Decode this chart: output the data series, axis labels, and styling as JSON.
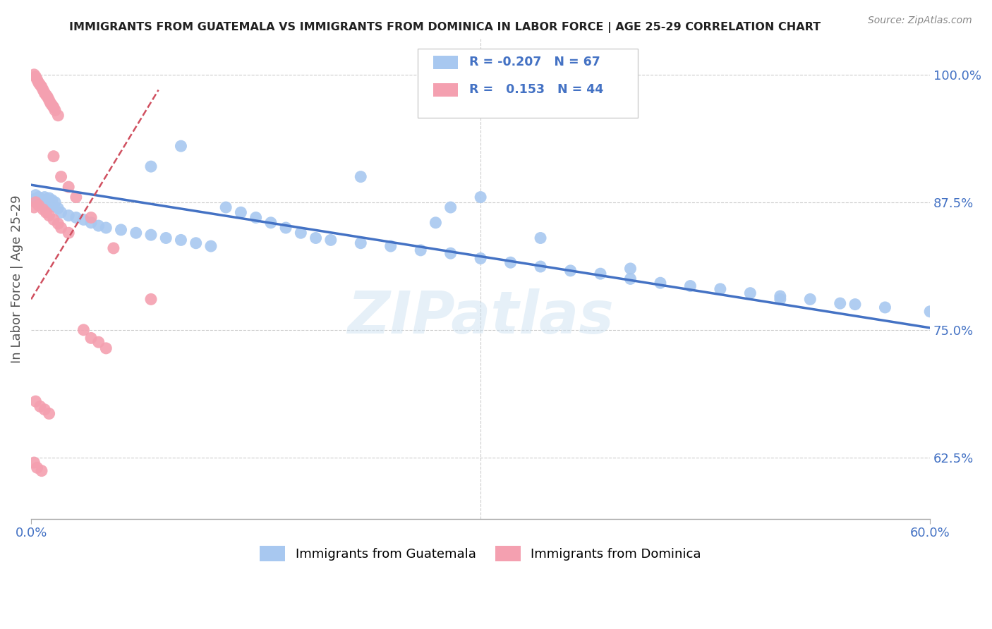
{
  "title": "IMMIGRANTS FROM GUATEMALA VS IMMIGRANTS FROM DOMINICA IN LABOR FORCE | AGE 25-29 CORRELATION CHART",
  "source": "Source: ZipAtlas.com",
  "ylabel": "In Labor Force | Age 25-29",
  "right_yticks": [
    1.0,
    0.875,
    0.75,
    0.625
  ],
  "right_yticklabels": [
    "100.0%",
    "87.5%",
    "75.0%",
    "62.5%"
  ],
  "xmin": 0.0,
  "xmax": 0.6,
  "ymin": 0.565,
  "ymax": 1.035,
  "watermark": "ZIPatlas",
  "legend1_label": "Immigrants from Guatemala",
  "legend2_label": "Immigrants from Dominica",
  "R_guatemala": -0.207,
  "N_guatemala": 67,
  "R_dominica": 0.153,
  "N_dominica": 44,
  "color_guatemala": "#a8c8f0",
  "color_dominica": "#f4a0b0",
  "trendline_guatemala_color": "#4472c4",
  "trendline_dominica_color": "#d05060",
  "background_color": "#ffffff",
  "guatemala_x": [
    0.002,
    0.003,
    0.004,
    0.005,
    0.006,
    0.007,
    0.008,
    0.009,
    0.01,
    0.011,
    0.012,
    0.013,
    0.014,
    0.015,
    0.016,
    0.018,
    0.02,
    0.025,
    0.03,
    0.035,
    0.04,
    0.045,
    0.05,
    0.06,
    0.07,
    0.08,
    0.09,
    0.1,
    0.11,
    0.12,
    0.13,
    0.14,
    0.15,
    0.16,
    0.17,
    0.18,
    0.19,
    0.2,
    0.22,
    0.24,
    0.26,
    0.27,
    0.28,
    0.3,
    0.32,
    0.34,
    0.36,
    0.38,
    0.4,
    0.42,
    0.44,
    0.46,
    0.48,
    0.5,
    0.52,
    0.54,
    0.3,
    0.55,
    0.57,
    0.6,
    0.08,
    0.1,
    0.22,
    0.28,
    0.34,
    0.4,
    0.5
  ],
  "guatemala_y": [
    0.878,
    0.882,
    0.876,
    0.88,
    0.875,
    0.878,
    0.872,
    0.88,
    0.876,
    0.874,
    0.879,
    0.873,
    0.877,
    0.871,
    0.875,
    0.869,
    0.865,
    0.862,
    0.86,
    0.858,
    0.855,
    0.852,
    0.85,
    0.848,
    0.845,
    0.843,
    0.84,
    0.838,
    0.835,
    0.832,
    0.87,
    0.865,
    0.86,
    0.855,
    0.85,
    0.845,
    0.84,
    0.838,
    0.835,
    0.832,
    0.828,
    0.855,
    0.825,
    0.82,
    0.816,
    0.812,
    0.808,
    0.805,
    0.8,
    0.796,
    0.793,
    0.79,
    0.786,
    0.783,
    0.78,
    0.776,
    0.88,
    0.775,
    0.772,
    0.768,
    0.91,
    0.93,
    0.9,
    0.87,
    0.84,
    0.81,
    0.78
  ],
  "dominica_x": [
    0.002,
    0.003,
    0.004,
    0.005,
    0.006,
    0.007,
    0.008,
    0.009,
    0.01,
    0.011,
    0.012,
    0.013,
    0.014,
    0.015,
    0.016,
    0.018,
    0.002,
    0.003,
    0.005,
    0.008,
    0.01,
    0.012,
    0.015,
    0.018,
    0.02,
    0.025,
    0.035,
    0.04,
    0.045,
    0.05,
    0.003,
    0.006,
    0.009,
    0.012,
    0.002,
    0.004,
    0.007,
    0.015,
    0.02,
    0.025,
    0.03,
    0.04,
    0.055,
    0.08
  ],
  "dominica_y": [
    1.0,
    0.998,
    0.995,
    0.992,
    0.99,
    0.988,
    0.985,
    0.982,
    0.98,
    0.978,
    0.975,
    0.972,
    0.97,
    0.968,
    0.965,
    0.96,
    0.87,
    0.875,
    0.872,
    0.868,
    0.865,
    0.862,
    0.858,
    0.854,
    0.85,
    0.845,
    0.75,
    0.742,
    0.738,
    0.732,
    0.68,
    0.675,
    0.672,
    0.668,
    0.62,
    0.615,
    0.612,
    0.92,
    0.9,
    0.89,
    0.88,
    0.86,
    0.83,
    0.78
  ],
  "trend_guatemala_x0": 0.0,
  "trend_guatemala_x1": 0.6,
  "trend_guatemala_y0": 0.892,
  "trend_guatemala_y1": 0.752,
  "trend_dominica_x0": 0.0,
  "trend_dominica_x1": 0.085,
  "trend_dominica_y0": 0.78,
  "trend_dominica_y1": 0.985
}
